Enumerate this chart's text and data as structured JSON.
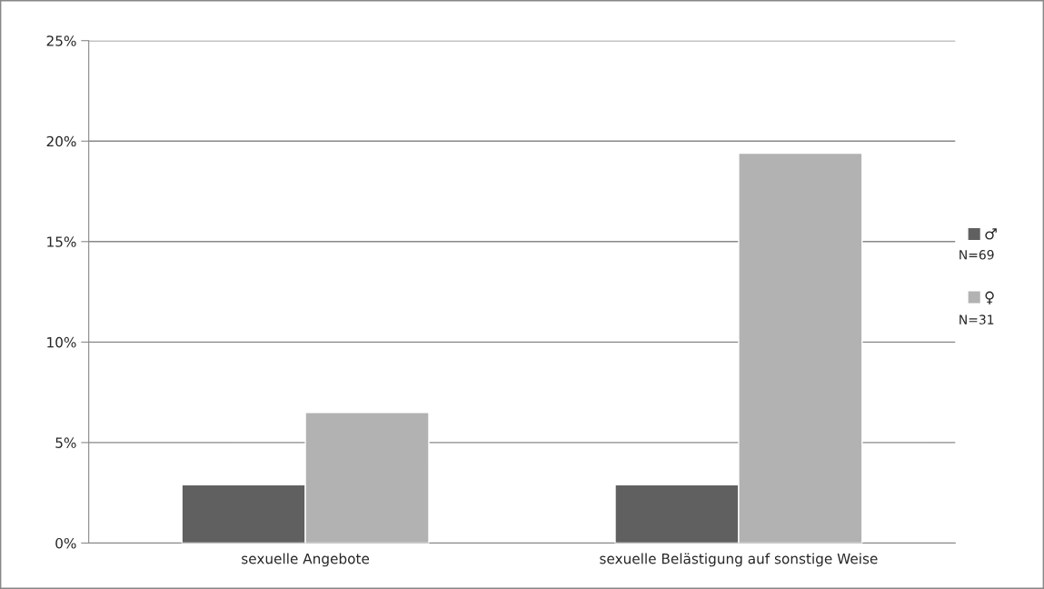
{
  "chart_data": {
    "type": "bar",
    "categories": [
      "sexuelle Angebote",
      "sexuelle Belästigung auf sonstige Weise"
    ],
    "series": [
      {
        "name": "♂",
        "color": "#606060",
        "values": [
          2.9,
          2.9
        ]
      },
      {
        "name": "♀",
        "color": "#b2b2b2",
        "values": [
          6.5,
          19.4
        ]
      }
    ],
    "annotations": [
      "N=69",
      "N=31"
    ],
    "ylim": [
      0,
      25
    ],
    "yticks": [
      {
        "value": 0,
        "label": "0%"
      },
      {
        "value": 5,
        "label": "5%"
      },
      {
        "value": 10,
        "label": "10%"
      },
      {
        "value": 15,
        "label": "15%"
      },
      {
        "value": 20,
        "label": "20%"
      },
      {
        "value": 25,
        "label": "25%"
      }
    ],
    "grid": "y",
    "legend": "right"
  }
}
